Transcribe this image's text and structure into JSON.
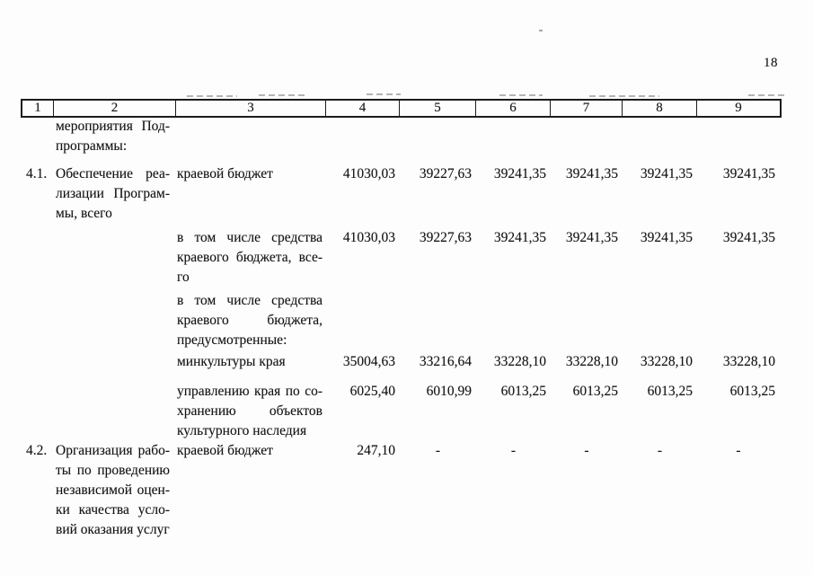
{
  "page": {
    "number": "18"
  },
  "table": {
    "header_cells": [
      "1",
      "2",
      "3",
      "4",
      "5",
      "6",
      "7",
      "8",
      "9"
    ],
    "rows": [
      {
        "num": "",
        "activity_lines": [
          "мероприятия Под-",
          "программы:"
        ],
        "source_lines": [],
        "values": [
          "",
          "",
          "",
          "",
          "",
          ""
        ]
      },
      {
        "num": "4.1.",
        "activity_lines": [
          "Обеспечение реа-",
          "лизации Програм-",
          "мы, всего"
        ],
        "source_lines": [
          "краевой бюджет"
        ],
        "values": [
          "41030,03",
          "39227,63",
          "39241,35",
          "39241,35",
          "39241,35",
          "39241,35"
        ]
      },
      {
        "num": "",
        "activity_lines": [],
        "source_lines": [
          "в том числе средства",
          "краевого бюджета, все-",
          "го"
        ],
        "values": [
          "41030,03",
          "39227,63",
          "39241,35",
          "39241,35",
          "39241,35",
          "39241,35"
        ]
      },
      {
        "num": "",
        "activity_lines": [],
        "source_lines": [
          "в том числе средства",
          "краевого бюджета,",
          "предусмотренные:"
        ],
        "values": [
          "",
          "",
          "",
          "",
          "",
          ""
        ]
      },
      {
        "num": "",
        "activity_lines": [],
        "source_lines": [
          "минкультуры края"
        ],
        "values": [
          "35004,63",
          "33216,64",
          "33228,10",
          "33228,10",
          "33228,10",
          "33228,10"
        ]
      },
      {
        "num": "",
        "activity_lines": [],
        "source_lines": [
          "управлению края по со-",
          "хранению объектов",
          "культурного наследия"
        ],
        "values": [
          "6025,40",
          "6010,99",
          "6013,25",
          "6013,25",
          "6013,25",
          "6013,25"
        ]
      },
      {
        "num": "4.2.",
        "activity_lines": [
          "Организация рабо-",
          "ты по проведению",
          "независимой оцен-",
          "ки качества усло-",
          "вий оказания услуг"
        ],
        "source_lines": [
          "краевой бюджет"
        ],
        "values": [
          "247,10",
          "-",
          "-",
          "-",
          "-",
          "-"
        ]
      }
    ]
  }
}
